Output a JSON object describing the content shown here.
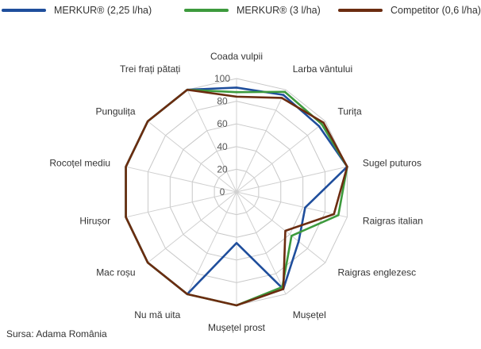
{
  "source": "Sursa: Adama România",
  "chart_data": {
    "type": "radar",
    "title": "",
    "categories": [
      "Coada vulpii",
      "Larba vântului",
      "Turița",
      "Sugel puturos",
      "Raigras italian",
      "Raigras englezesc",
      "Mușețel",
      "Mușețel prost",
      "Nu mă uita",
      "Mac roșu",
      "Hirușor",
      "Rocoțel mediu",
      "Pungulița",
      "Trei frați pătați"
    ],
    "radial_ticks": [
      0,
      20,
      40,
      60,
      80,
      100
    ],
    "rlim": [
      0,
      100
    ],
    "grid": true,
    "legend_position": "top",
    "series": [
      {
        "name": "MERKUR® (2,25 l/ha)",
        "color": "#1f4e9c",
        "values": [
          92,
          95,
          93,
          100,
          62,
          70,
          95,
          45,
          100,
          100,
          100,
          100,
          100,
          100
        ]
      },
      {
        "name": "MERKUR® (3 l/ha)",
        "color": "#3d9a3d",
        "values": [
          88,
          98,
          96,
          100,
          92,
          62,
          93,
          100,
          100,
          100,
          100,
          100,
          100,
          100
        ]
      },
      {
        "name": "Competitor (0,6 l/ha)",
        "color": "#6b2c10",
        "values": [
          84,
          92,
          98,
          100,
          88,
          55,
          95,
          100,
          100,
          100,
          100,
          100,
          100,
          100
        ]
      }
    ]
  }
}
